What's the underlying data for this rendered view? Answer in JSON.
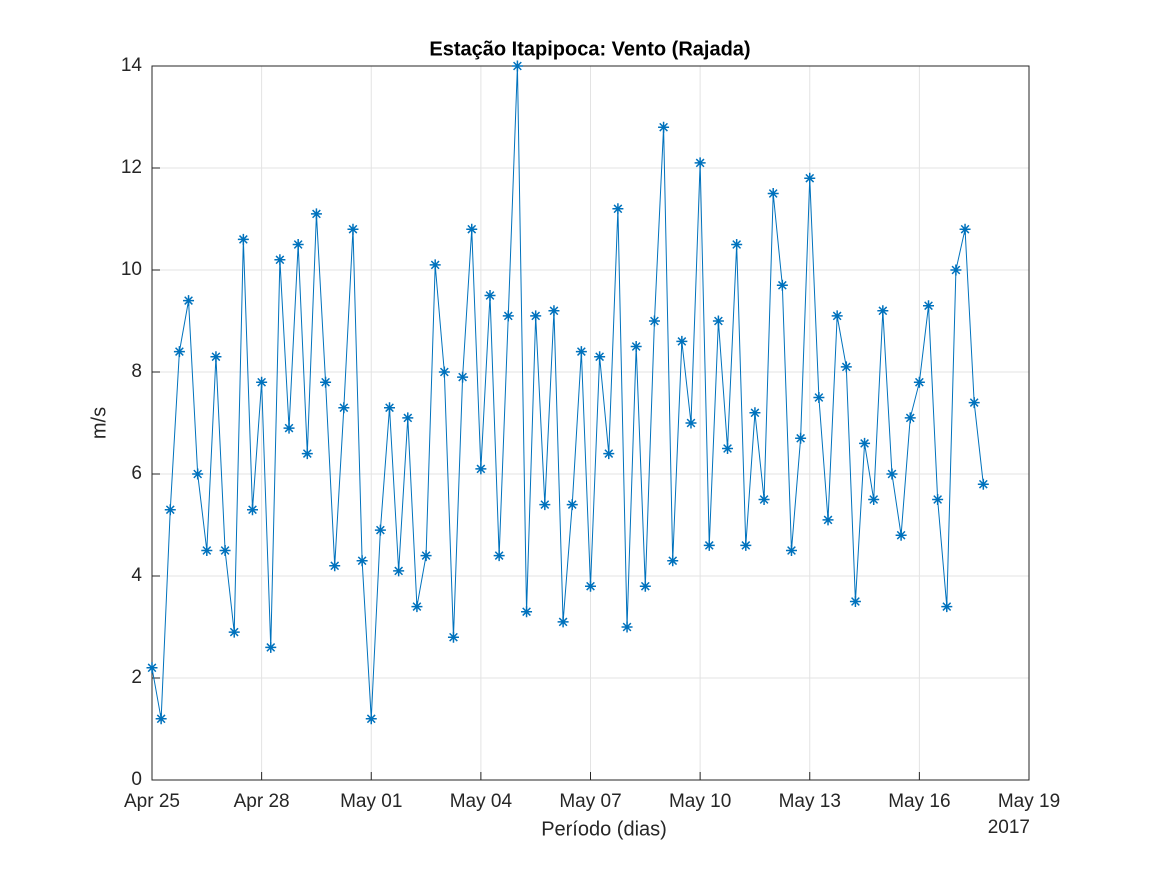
{
  "chart_data": {
    "type": "line",
    "title": "Estação Itapipoca: Vento (Rajada)",
    "xlabel": "Período (dias)",
    "ylabel": "m/s",
    "annotation": "2017",
    "x": [
      0,
      0.25,
      0.5,
      0.75,
      1,
      1.25,
      1.5,
      1.75,
      2,
      2.25,
      2.5,
      2.75,
      3,
      3.25,
      3.5,
      3.75,
      4,
      4.25,
      4.5,
      4.75,
      5,
      5.25,
      5.5,
      5.75,
      6,
      6.25,
      6.5,
      6.75,
      7,
      7.25,
      7.5,
      7.75,
      8,
      8.25,
      8.5,
      8.75,
      9,
      9.25,
      9.5,
      9.75,
      10,
      10.25,
      10.5,
      10.75,
      11,
      11.25,
      11.5,
      11.75,
      12,
      12.25,
      12.5,
      12.75,
      13,
      13.25,
      13.5,
      13.75,
      14,
      14.25,
      14.5,
      14.75,
      15,
      15.25,
      15.5,
      15.75,
      16,
      16.25,
      16.5,
      16.75,
      17,
      17.25,
      17.5,
      17.75,
      18,
      18.25,
      18.5,
      18.75,
      19,
      19.25,
      19.5,
      19.75,
      20,
      20.25,
      20.5,
      20.75,
      21,
      21.25,
      21.5,
      21.75,
      22,
      22.25,
      22.5,
      22.75
    ],
    "series": [
      {
        "name": "Rajada",
        "color": "#0072bd",
        "values": [
          2.2,
          1.2,
          5.3,
          8.4,
          9.4,
          6.0,
          4.5,
          8.3,
          4.5,
          2.9,
          10.6,
          5.3,
          7.8,
          2.6,
          10.2,
          6.9,
          10.5,
          6.4,
          11.1,
          7.8,
          4.2,
          7.3,
          10.8,
          4.3,
          1.2,
          4.9,
          7.3,
          4.1,
          7.1,
          3.4,
          4.4,
          10.1,
          8.0,
          2.8,
          7.9,
          10.8,
          6.1,
          9.5,
          4.4,
          9.1,
          14.0,
          3.3,
          9.1,
          5.4,
          9.2,
          3.1,
          5.4,
          8.4,
          3.8,
          8.3,
          6.4,
          11.2,
          3.0,
          8.5,
          3.8,
          9.0,
          12.8,
          4.3,
          8.6,
          7.0,
          12.1,
          4.6,
          9.0,
          6.5,
          10.5,
          4.6,
          7.2,
          5.5,
          11.5,
          9.7,
          4.5,
          6.7,
          11.8,
          7.5,
          5.1,
          9.1,
          8.1,
          3.5,
          6.6,
          5.5,
          9.2,
          6.0,
          4.8,
          7.1,
          7.8,
          9.3,
          5.5,
          3.4,
          10.0,
          10.8,
          7.4,
          5.8
        ]
      }
    ],
    "xlim": [
      0,
      24
    ],
    "xticks": [
      {
        "value": 0,
        "label": "Apr 25"
      },
      {
        "value": 3,
        "label": "Apr 28"
      },
      {
        "value": 6,
        "label": "May 01"
      },
      {
        "value": 9,
        "label": "May 04"
      },
      {
        "value": 12,
        "label": "May 07"
      },
      {
        "value": 15,
        "label": "May 10"
      },
      {
        "value": 18,
        "label": "May 13"
      },
      {
        "value": 21,
        "label": "May 16"
      },
      {
        "value": 24,
        "label": "May 19"
      }
    ],
    "ylim": [
      0,
      14
    ],
    "yticks": [
      0,
      2,
      4,
      6,
      8,
      10,
      12,
      14
    ],
    "grid": true,
    "marker": "asterisk"
  }
}
